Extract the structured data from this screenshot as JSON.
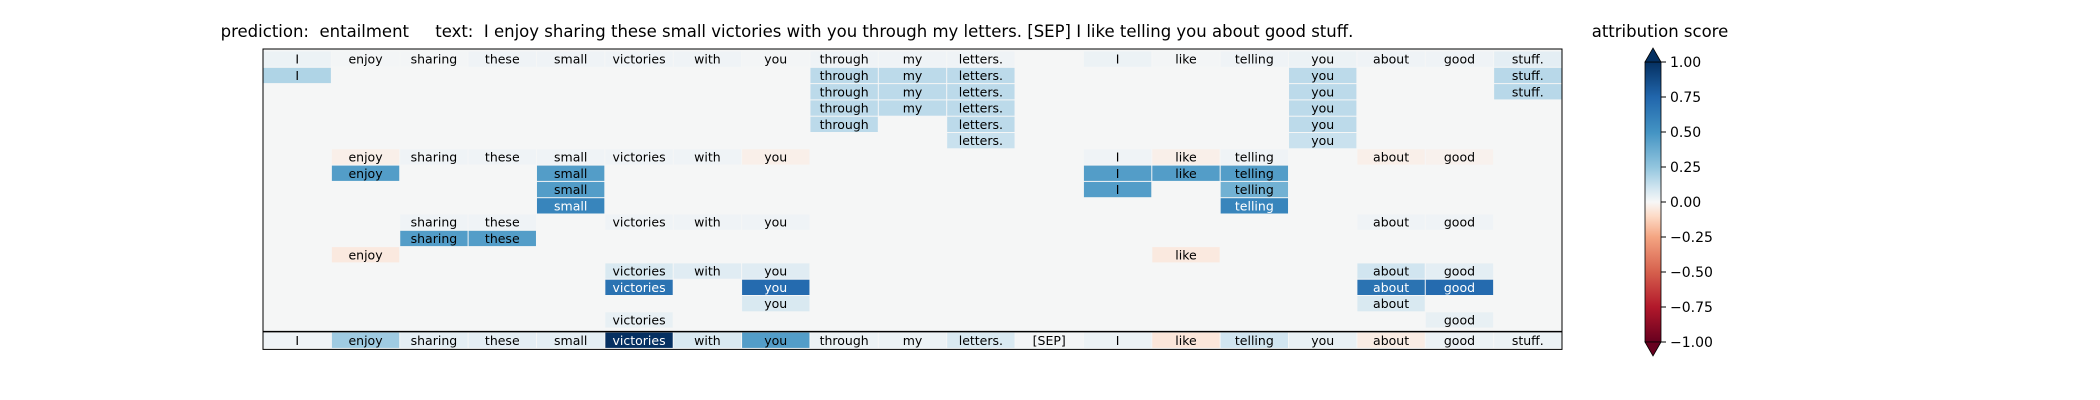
{
  "title": {
    "prediction_label": "prediction:",
    "prediction": "entailment",
    "text_label": "text:",
    "text": "I enjoy sharing these small victories with you through my letters. [SEP] I like telling you about good stuff."
  },
  "colorbar": {
    "title": "attribution score",
    "ticks": [
      "1.00",
      "0.75",
      "0.50",
      "0.25",
      "0.00",
      "−0.25",
      "−0.50",
      "−0.75",
      "−1.00"
    ],
    "range": [
      -1,
      1
    ],
    "colormap": "RdBu"
  },
  "chart_data": {
    "type": "heatmap",
    "tokens": [
      "I",
      "enjoy",
      "sharing",
      "these",
      "small",
      "victories",
      "with",
      "you",
      "through",
      "my",
      "letters.",
      "[SEP]",
      "I",
      "like",
      "telling",
      "you",
      "about",
      "good",
      "stuff."
    ],
    "rows": [
      {
        "cells": [
          [
            0,
            0.03
          ],
          [
            1,
            0.01
          ],
          [
            2,
            0.01
          ],
          [
            3,
            0.02
          ],
          [
            4,
            0.02
          ],
          [
            5,
            0.02
          ],
          [
            6,
            0.02
          ],
          [
            7,
            0.01
          ],
          [
            8,
            0.02
          ],
          [
            9,
            0.02
          ],
          [
            10,
            0.02
          ],
          [
            12,
            0.03
          ],
          [
            13,
            0.01
          ],
          [
            14,
            0.02
          ],
          [
            15,
            0.03
          ],
          [
            16,
            0.02
          ],
          [
            17,
            0.02
          ],
          [
            18,
            0.05
          ]
        ]
      },
      {
        "cells": [
          [
            0,
            0.18
          ],
          [
            8,
            0.15
          ],
          [
            9,
            0.15
          ],
          [
            10,
            0.15
          ],
          [
            15,
            0.15
          ],
          [
            18,
            0.16
          ]
        ]
      },
      {
        "cells": [
          [
            8,
            0.15
          ],
          [
            9,
            0.15
          ],
          [
            10,
            0.15
          ],
          [
            15,
            0.15
          ],
          [
            18,
            0.16
          ]
        ]
      },
      {
        "cells": [
          [
            8,
            0.15
          ],
          [
            9,
            0.15
          ],
          [
            10,
            0.15
          ],
          [
            15,
            0.15
          ]
        ]
      },
      {
        "cells": [
          [
            8,
            0.15
          ],
          [
            10,
            0.15
          ],
          [
            15,
            0.15
          ]
        ]
      },
      {
        "cells": [
          [
            10,
            0.12
          ],
          [
            15,
            0.12
          ]
        ]
      },
      {
        "cells": [
          [
            1,
            -0.03
          ],
          [
            2,
            0.02
          ],
          [
            3,
            0.02
          ],
          [
            4,
            0.02
          ],
          [
            5,
            0.02
          ],
          [
            6,
            0.02
          ],
          [
            7,
            -0.03
          ],
          [
            12,
            0.02
          ],
          [
            13,
            -0.03
          ],
          [
            14,
            0.02
          ],
          [
            16,
            -0.03
          ],
          [
            17,
            -0.02
          ]
        ]
      },
      {
        "cells": [
          [
            1,
            0.45
          ],
          [
            4,
            0.45
          ],
          [
            12,
            0.45
          ],
          [
            13,
            0.45
          ],
          [
            14,
            0.45
          ]
        ]
      },
      {
        "cells": [
          [
            4,
            0.45
          ],
          [
            12,
            0.45
          ],
          [
            14,
            0.35
          ]
        ]
      },
      {
        "cells": [
          [
            4,
            0.58
          ],
          [
            14,
            0.58
          ]
        ]
      },
      {
        "cells": [
          [
            2,
            0.02
          ],
          [
            3,
            0.02
          ],
          [
            5,
            0.02
          ],
          [
            6,
            0.02
          ],
          [
            7,
            0.02
          ],
          [
            16,
            0.02
          ],
          [
            17,
            0.02
          ]
        ]
      },
      {
        "cells": [
          [
            2,
            0.45
          ],
          [
            3,
            0.45
          ]
        ]
      },
      {
        "cells": [
          [
            1,
            -0.05
          ],
          [
            13,
            -0.05
          ]
        ]
      },
      {
        "cells": [
          [
            5,
            0.08
          ],
          [
            6,
            0.06
          ],
          [
            7,
            0.06
          ],
          [
            16,
            0.1
          ],
          [
            17,
            0.05
          ]
        ]
      },
      {
        "cells": [
          [
            5,
            0.68
          ],
          [
            7,
            0.72
          ],
          [
            16,
            0.68
          ],
          [
            17,
            0.72
          ]
        ]
      },
      {
        "cells": [
          [
            7,
            0.08
          ],
          [
            16,
            0.08
          ]
        ]
      },
      {
        "cells": [
          [
            5,
            0.04
          ],
          [
            17,
            0.04
          ]
        ]
      }
    ],
    "summary_row": [
      0.02,
      0.22,
      0.05,
      0.05,
      0.05,
      1.0,
      0.08,
      0.45,
      0.03,
      0.03,
      0.08,
      0.01,
      0.03,
      -0.06,
      0.1,
      0.04,
      -0.04,
      0.03,
      0.03
    ],
    "vmin": -1,
    "vmax": 1
  }
}
